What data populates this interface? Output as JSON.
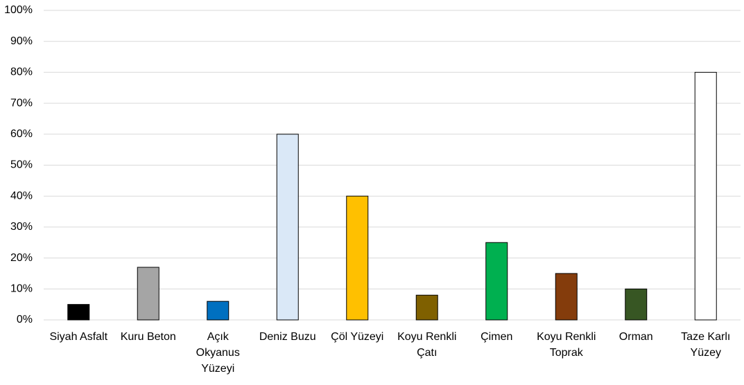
{
  "chart_data": {
    "type": "bar",
    "categories": [
      "Siyah Asfalt",
      "Kuru Beton",
      "Açık Okyanus Yüzeyi",
      "Deniz Buzu",
      "Çöl Yüzeyi",
      "Koyu Renkli Çatı",
      "Çimen",
      "Koyu Renkli Toprak",
      "Orman",
      "Taze Karlı Yüzey"
    ],
    "values": [
      5,
      17,
      6,
      60,
      40,
      8,
      25,
      15,
      10,
      80
    ],
    "colors": [
      "#000000",
      "#a5a5a5",
      "#0070c0",
      "#dae8f7",
      "#ffc000",
      "#7f6000",
      "#00b050",
      "#843c0c",
      "#375623",
      "#ffffff"
    ],
    "ylim": [
      0,
      100
    ],
    "yticks": [
      {
        "value": 0,
        "label": "0%"
      },
      {
        "value": 10,
        "label": "10%"
      },
      {
        "value": 20,
        "label": "20%"
      },
      {
        "value": 30,
        "label": "30%"
      },
      {
        "value": 40,
        "label": "40%"
      },
      {
        "value": 50,
        "label": "50%"
      },
      {
        "value": 60,
        "label": "60%"
      },
      {
        "value": 70,
        "label": "70%"
      },
      {
        "value": 80,
        "label": "80%"
      },
      {
        "value": 90,
        "label": "90%"
      },
      {
        "value": 100,
        "label": "100%"
      }
    ],
    "grid": true
  }
}
